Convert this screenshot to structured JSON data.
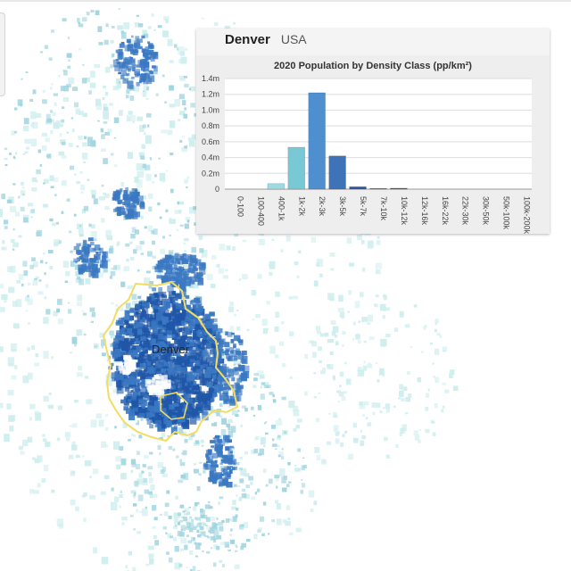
{
  "map": {
    "place_label": "Denver",
    "colors": {
      "dense": "#1f56a8",
      "mid": "#3a78c2",
      "light": "#9fd4df",
      "pale": "#cfeeee",
      "boundary": "#f3dc62"
    }
  },
  "panel": {
    "city": "Denver",
    "country": "USA"
  },
  "chart_data": {
    "type": "bar",
    "title": "2020 Population by Density Class (pp/km²)",
    "xlabel": "",
    "ylabel": "",
    "categories": [
      "0-100",
      "100-400",
      "400-1k",
      "1k-2k",
      "2k-3k",
      "3k-5k",
      "5k-7k",
      "7k-10k",
      "10k-12k",
      "12k-16k",
      "16k-22k",
      "22k-30k",
      "30k-50k",
      "50k-100k",
      "100k-200k"
    ],
    "values": [
      0,
      0,
      0.07,
      0.53,
      1.22,
      0.42,
      0.03,
      0.008,
      0.012,
      0,
      0,
      0,
      0,
      0,
      0
    ],
    "y_tick_labels": [
      "0",
      "0.2m",
      "0.4m",
      "0.6m",
      "0.8m",
      "1.0m",
      "1.2m",
      "1.4m"
    ],
    "ylim": [
      0,
      1.4
    ],
    "grid": true,
    "bar_colors": [
      "#cdeff0",
      "#bfe8ec",
      "#9fd9e2",
      "#79c8d6",
      "#4f8fd0",
      "#3f73b8",
      "#2d5a9e",
      "#3a4f93",
      "#5b4fa3",
      "#6b3f98",
      "#7a2f8c",
      "#84247e",
      "#8a1a6e",
      "#8e135e",
      "#900a4e"
    ]
  }
}
